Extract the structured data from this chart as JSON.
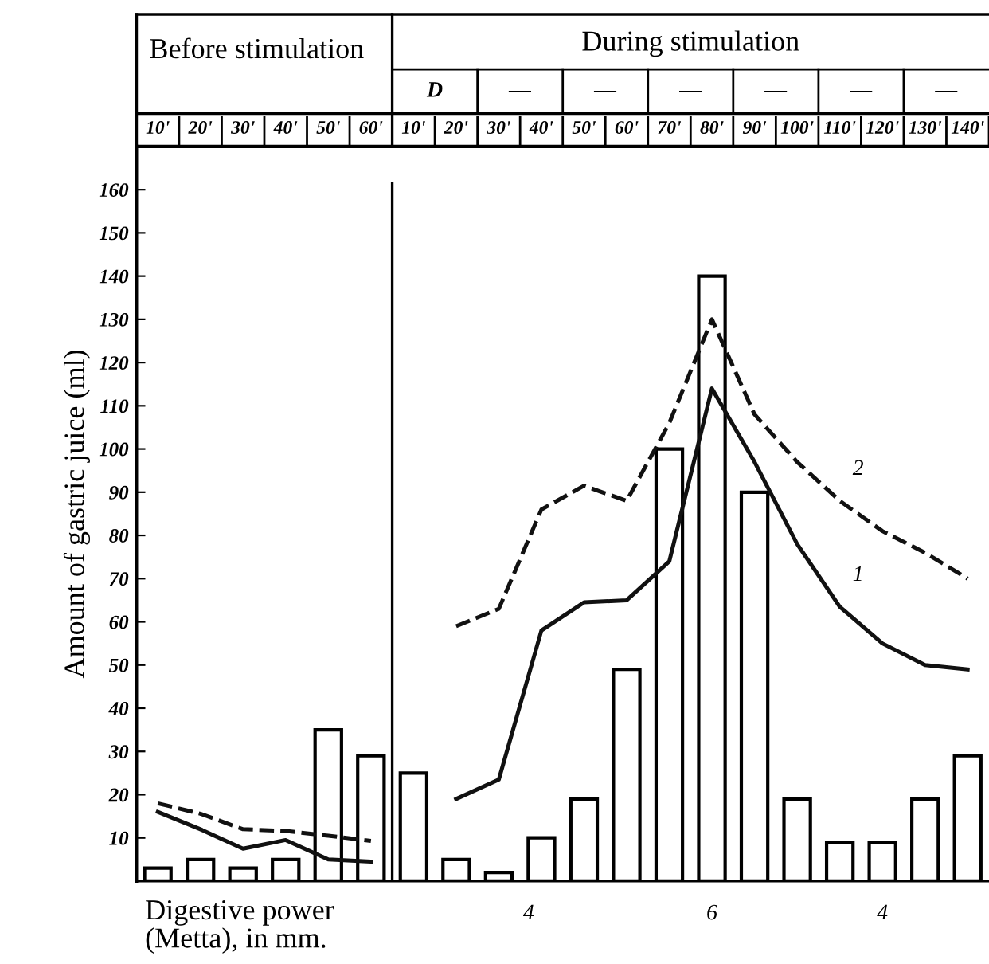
{
  "chart_data": {
    "type": "bar",
    "ylabel": "Amount of gastric juice (ml)",
    "categories": [
      "10'",
      "20'",
      "30'",
      "40'",
      "50'",
      "60'",
      "10'",
      "20'",
      "30'",
      "40'",
      "50'",
      "60'",
      "70'",
      "80'",
      "90'",
      "100'",
      "110'",
      "120'",
      "130'",
      "140'"
    ],
    "series": [
      {
        "color": "#ffffff",
        "values": [
          3,
          5,
          3,
          5,
          35,
          29,
          25,
          5,
          2,
          10,
          19,
          49,
          100,
          140,
          90,
          19,
          9,
          9,
          19,
          29
        ]
      },
      {
        "type": "line",
        "name": "1",
        "color": "#111111",
        "line_style": "solid",
        "values": [
          16,
          12,
          7.5,
          9.5,
          5,
          4.5,
          null,
          19,
          23.5,
          58,
          64.5,
          65,
          74,
          114,
          97,
          78,
          63.5,
          55,
          50,
          49
        ]
      },
      {
        "type": "line",
        "name": "2",
        "color": "#111111",
        "line_style": "dashed",
        "values": [
          18,
          15.6,
          12,
          11.6,
          10.5,
          9.3,
          null,
          59,
          63,
          86,
          91.5,
          88,
          106,
          130,
          108,
          97,
          88,
          81,
          76,
          70
        ]
      }
    ],
    "ylim": [
      0,
      170
    ],
    "yticks": [
      10,
      20,
      30,
      40,
      50,
      60,
      70,
      80,
      90,
      100,
      110,
      120,
      130,
      140,
      150,
      160
    ],
    "grid": false,
    "marker": "none",
    "annotations": [
      "Before stimulation",
      "During stimulation",
      "D",
      "—",
      "—",
      "—",
      "—",
      "—",
      "—",
      "Digestive power\n(Metta), in mm.",
      "4",
      "6",
      "4"
    ]
  }
}
